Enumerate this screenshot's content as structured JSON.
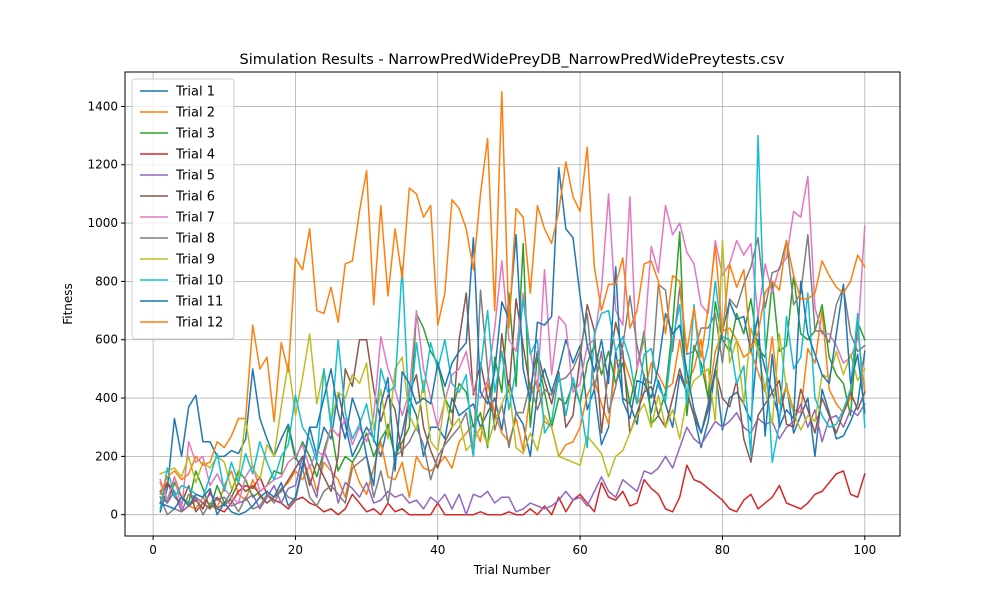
{
  "chart_data": {
    "type": "line",
    "title": "Simulation Results - NarrowPredWidePreyDB_NarrowPredWidePreytests.csv",
    "xlabel": "Trial Number",
    "ylabel": "Fitness",
    "xlim": [
      -3.95,
      104.95
    ],
    "ylim": [
      -73,
      1518
    ],
    "xticks": [
      0,
      20,
      40,
      60,
      80,
      100
    ],
    "yticks": [
      0,
      200,
      400,
      600,
      800,
      1000,
      1200,
      1400
    ],
    "grid": true,
    "legend_position": "upper-left",
    "series": [
      {
        "name": "Trial 1",
        "color": "#1f77b4",
        "values": [
          10,
          90,
          330,
          200,
          370,
          410,
          250,
          250,
          200,
          200,
          220,
          210,
          260,
          500,
          330,
          260,
          200,
          260,
          310,
          200,
          150,
          300,
          200,
          300,
          260,
          420,
          310,
          200,
          250,
          300,
          260,
          200,
          310,
          200,
          280,
          400,
          340,
          200,
          300,
          300,
          260,
          400,
          340,
          360,
          380,
          300,
          350,
          400,
          290,
          460,
          350,
          310,
          200,
          420,
          500,
          420,
          500,
          600,
          520,
          580,
          360,
          430,
          240,
          300,
          560,
          400,
          380,
          310,
          480,
          350,
          460,
          380,
          300,
          480,
          420,
          340,
          230,
          320,
          500,
          290,
          400,
          420,
          380,
          320,
          600,
          500,
          420,
          330,
          450,
          280,
          340,
          400,
          200,
          430,
          350,
          260,
          270,
          320,
          380,
          560
        ]
      },
      {
        "name": "Trial 2",
        "color": "#ff7f0e",
        "values": [
          110,
          50,
          130,
          60,
          30,
          20,
          60,
          30,
          20,
          100,
          150,
          70,
          50,
          120,
          60,
          40,
          60,
          90,
          110,
          150,
          120,
          170,
          80,
          180,
          150,
          120,
          60,
          180,
          110,
          70,
          160,
          250,
          130,
          120,
          180,
          60,
          200,
          160,
          150,
          170,
          200,
          160,
          250,
          280,
          310,
          250,
          450,
          350,
          280,
          250,
          330,
          220,
          420,
          460,
          320,
          300,
          200,
          240,
          250,
          300,
          410,
          460,
          380,
          310,
          520,
          540,
          470,
          380,
          420,
          520,
          480,
          430,
          450,
          600,
          450,
          500,
          600,
          390,
          560,
          630,
          640,
          600,
          540,
          560,
          490,
          420,
          610,
          380,
          440,
          360,
          350,
          570,
          520,
          700,
          430,
          380,
          350,
          400,
          640,
          420
        ]
      },
      {
        "name": "Trial 3",
        "color": "#2ca02c",
        "values": [
          80,
          40,
          110,
          60,
          40,
          150,
          90,
          20,
          100,
          40,
          80,
          150,
          120,
          60,
          80,
          100,
          150,
          140,
          300,
          190,
          250,
          200,
          130,
          220,
          300,
          150,
          200,
          180,
          220,
          280,
          200,
          260,
          300,
          200,
          250,
          300,
          690,
          640,
          560,
          520,
          400,
          350,
          450,
          420,
          300,
          350,
          230,
          540,
          420,
          760,
          440,
          930,
          300,
          540,
          420,
          300,
          400,
          380,
          450,
          380,
          520,
          580,
          480,
          560,
          450,
          520,
          380,
          500,
          630,
          310,
          340,
          420,
          650,
          970,
          340,
          580,
          520,
          400,
          730,
          600,
          560,
          690,
          620,
          740,
          570,
          540,
          800,
          560,
          580,
          820,
          620,
          600,
          630,
          720,
          540,
          480,
          450,
          340,
          660,
          600
        ]
      },
      {
        "name": "Trial 4",
        "color": "#d62728",
        "values": [
          40,
          110,
          80,
          10,
          30,
          50,
          20,
          80,
          20,
          10,
          40,
          80,
          100,
          90,
          130,
          70,
          50,
          40,
          20,
          50,
          60,
          40,
          30,
          10,
          20,
          0,
          20,
          70,
          40,
          10,
          20,
          0,
          40,
          10,
          20,
          0,
          0,
          0,
          0,
          40,
          0,
          0,
          0,
          0,
          0,
          10,
          0,
          0,
          0,
          10,
          0,
          0,
          20,
          0,
          30,
          0,
          60,
          10,
          50,
          70,
          40,
          10,
          110,
          60,
          50,
          80,
          30,
          40,
          120,
          90,
          70,
          20,
          10,
          60,
          170,
          120,
          110,
          90,
          70,
          50,
          20,
          10,
          50,
          70,
          20,
          40,
          60,
          100,
          40,
          30,
          20,
          40,
          70,
          80,
          110,
          140,
          150,
          70,
          60,
          140
        ]
      },
      {
        "name": "Trial 5",
        "color": "#9467bd",
        "values": [
          60,
          40,
          80,
          10,
          30,
          60,
          40,
          70,
          50,
          60,
          30,
          40,
          50,
          70,
          20,
          60,
          100,
          40,
          90,
          100,
          200,
          120,
          60,
          220,
          160,
          40,
          110,
          90,
          60,
          110,
          40,
          50,
          80,
          60,
          70,
          40,
          50,
          20,
          60,
          40,
          70,
          20,
          70,
          0,
          70,
          60,
          80,
          40,
          60,
          60,
          10,
          20,
          40,
          30,
          20,
          30,
          50,
          80,
          50,
          60,
          30,
          80,
          130,
          80,
          60,
          120,
          100,
          80,
          150,
          140,
          160,
          200,
          160,
          230,
          300,
          260,
          240,
          280,
          320,
          300,
          320,
          350,
          300,
          280,
          330,
          310,
          320,
          260,
          300,
          320,
          380,
          300,
          360,
          250,
          330,
          340,
          300,
          360,
          340,
          380
        ]
      },
      {
        "name": "Trial 6",
        "color": "#8c564b",
        "values": [
          80,
          110,
          60,
          40,
          100,
          10,
          40,
          20,
          60,
          30,
          60,
          110,
          80,
          100,
          70,
          40,
          60,
          80,
          120,
          160,
          200,
          100,
          180,
          130,
          80,
          200,
          500,
          440,
          600,
          600,
          430,
          320,
          410,
          360,
          200,
          420,
          480,
          300,
          220,
          160,
          250,
          300,
          600,
          760,
          410,
          520,
          400,
          330,
          620,
          420,
          740,
          580,
          430,
          560,
          460,
          380,
          490,
          300,
          340,
          540,
          720,
          630,
          280,
          500,
          660,
          560,
          280,
          350,
          420,
          440,
          340,
          300,
          400,
          500,
          420,
          340,
          280,
          360,
          500,
          400,
          370,
          460,
          260,
          180,
          340,
          380,
          420,
          460,
          310,
          300,
          430,
          360,
          280,
          400,
          340,
          280,
          350,
          420,
          360,
          420
        ]
      },
      {
        "name": "Trial 7",
        "color": "#e377c2",
        "values": [
          120,
          50,
          130,
          20,
          250,
          180,
          200,
          100,
          140,
          90,
          60,
          40,
          130,
          170,
          80,
          100,
          120,
          130,
          180,
          200,
          240,
          160,
          220,
          200,
          300,
          270,
          330,
          240,
          300,
          250,
          340,
          610,
          500,
          430,
          340,
          420,
          700,
          500,
          400,
          300,
          390,
          480,
          500,
          560,
          420,
          400,
          460,
          640,
          870,
          600,
          560,
          760,
          560,
          430,
          840,
          480,
          680,
          650,
          420,
          450,
          580,
          600,
          770,
          1100,
          700,
          650,
          1090,
          500,
          600,
          920,
          830,
          1060,
          960,
          1000,
          900,
          860,
          720,
          690,
          940,
          820,
          860,
          940,
          890,
          930,
          680,
          860,
          760,
          850,
          880,
          1040,
          1020,
          1160,
          710,
          620,
          620,
          580,
          520,
          540,
          600,
          990
        ]
      },
      {
        "name": "Trial 8",
        "color": "#7f7f7f",
        "values": [
          60,
          0,
          20,
          10,
          70,
          60,
          0,
          40,
          20,
          40,
          50,
          10,
          60,
          20,
          30,
          70,
          40,
          90,
          60,
          50,
          160,
          60,
          30,
          80,
          100,
          70,
          40,
          160,
          180,
          200,
          60,
          150,
          40,
          200,
          220,
          250,
          300,
          240,
          120,
          200,
          240,
          270,
          300,
          350,
          200,
          770,
          500,
          290,
          380,
          230,
          350,
          350,
          450,
          360,
          430,
          410,
          460,
          470,
          500,
          560,
          690,
          430,
          560,
          350,
          440,
          580,
          750,
          580,
          470,
          450,
          790,
          770,
          560,
          780,
          550,
          560,
          640,
          640,
          690,
          520,
          740,
          710,
          790,
          850,
          950,
          710,
          830,
          840,
          940,
          720,
          760,
          960,
          630,
          630,
          590,
          720,
          780,
          620,
          560,
          580
        ]
      },
      {
        "name": "Trial 9",
        "color": "#bcbd22",
        "values": [
          140,
          150,
          160,
          130,
          200,
          110,
          180,
          160,
          200,
          180,
          90,
          130,
          330,
          160,
          120,
          240,
          200,
          370,
          520,
          340,
          470,
          620,
          380,
          500,
          320,
          420,
          400,
          480,
          450,
          520,
          290,
          430,
          260,
          500,
          540,
          340,
          290,
          460,
          250,
          220,
          400,
          300,
          330,
          220,
          250,
          300,
          240,
          320,
          380,
          440,
          230,
          210,
          280,
          220,
          340,
          300,
          200,
          190,
          180,
          170,
          270,
          240,
          210,
          130,
          200,
          220,
          280,
          340,
          380,
          300,
          410,
          300,
          360,
          260,
          400,
          460,
          480,
          500,
          320,
          940,
          520,
          600,
          380,
          640,
          560,
          430,
          310,
          620,
          430,
          350,
          290,
          340,
          320,
          480,
          470,
          560,
          480,
          550,
          460,
          500
        ]
      },
      {
        "name": "Trial 10",
        "color": "#17becf",
        "values": [
          20,
          160,
          60,
          100,
          90,
          70,
          60,
          130,
          210,
          80,
          180,
          110,
          210,
          140,
          250,
          180,
          120,
          200,
          240,
          410,
          300,
          260,
          180,
          500,
          300,
          600,
          350,
          260,
          310,
          380,
          250,
          500,
          420,
          440,
          850,
          330,
          590,
          420,
          590,
          500,
          600,
          450,
          420,
          480,
          200,
          500,
          700,
          420,
          560,
          360,
          500,
          740,
          550,
          600,
          280,
          320,
          480,
          340,
          470,
          380,
          230,
          620,
          690,
          700,
          560,
          610,
          530,
          380,
          550,
          570,
          440,
          390,
          600,
          720,
          380,
          720,
          480,
          580,
          800,
          610,
          600,
          450,
          510,
          200,
          1300,
          590,
          180,
          310,
          680,
          500,
          540,
          760,
          400,
          340,
          300,
          310,
          360,
          430,
          690,
          300
        ]
      },
      {
        "name": "Trial 11",
        "color": "#1f77b4",
        "values": [
          40,
          30,
          20,
          60,
          30,
          70,
          60,
          90,
          0,
          40,
          10,
          0,
          10,
          30,
          60,
          80,
          60,
          110,
          30,
          60,
          170,
          300,
          300,
          400,
          500,
          350,
          260,
          400,
          330,
          200,
          100,
          380,
          470,
          150,
          490,
          450,
          380,
          400,
          380,
          520,
          440,
          520,
          560,
          590,
          950,
          420,
          380,
          490,
          730,
          670,
          960,
          500,
          390,
          660,
          650,
          680,
          1190,
          980,
          950,
          750,
          580,
          490,
          600,
          450,
          850,
          390,
          330,
          460,
          450,
          400,
          510,
          690,
          620,
          650,
          490,
          360,
          280,
          380,
          500,
          630,
          730,
          670,
          680,
          560,
          680,
          270,
          550,
          300,
          360,
          330,
          800,
          620,
          550,
          480,
          450,
          620,
          790,
          450,
          550,
          350
        ]
      },
      {
        "name": "Trial 12",
        "color": "#ff7f0e",
        "values": [
          70,
          130,
          150,
          120,
          140,
          200,
          170,
          180,
          250,
          230,
          270,
          330,
          330,
          650,
          500,
          540,
          320,
          590,
          490,
          880,
          840,
          980,
          700,
          690,
          780,
          660,
          860,
          870,
          1040,
          1180,
          720,
          1060,
          750,
          980,
          810,
          1120,
          1100,
          1020,
          1060,
          650,
          760,
          1080,
          1050,
          980,
          840,
          1100,
          1290,
          700,
          1450,
          640,
          1050,
          1020,
          760,
          1060,
          980,
          930,
          1040,
          1210,
          1090,
          1040,
          1260,
          850,
          700,
          790,
          790,
          880,
          640,
          700,
          860,
          870,
          800,
          620,
          820,
          800,
          560,
          710,
          540,
          710,
          920,
          620,
          860,
          780,
          840,
          570,
          620,
          760,
          800,
          770,
          940,
          820,
          740,
          740,
          760,
          870,
          820,
          780,
          760,
          800,
          890,
          850
        ]
      }
    ]
  }
}
